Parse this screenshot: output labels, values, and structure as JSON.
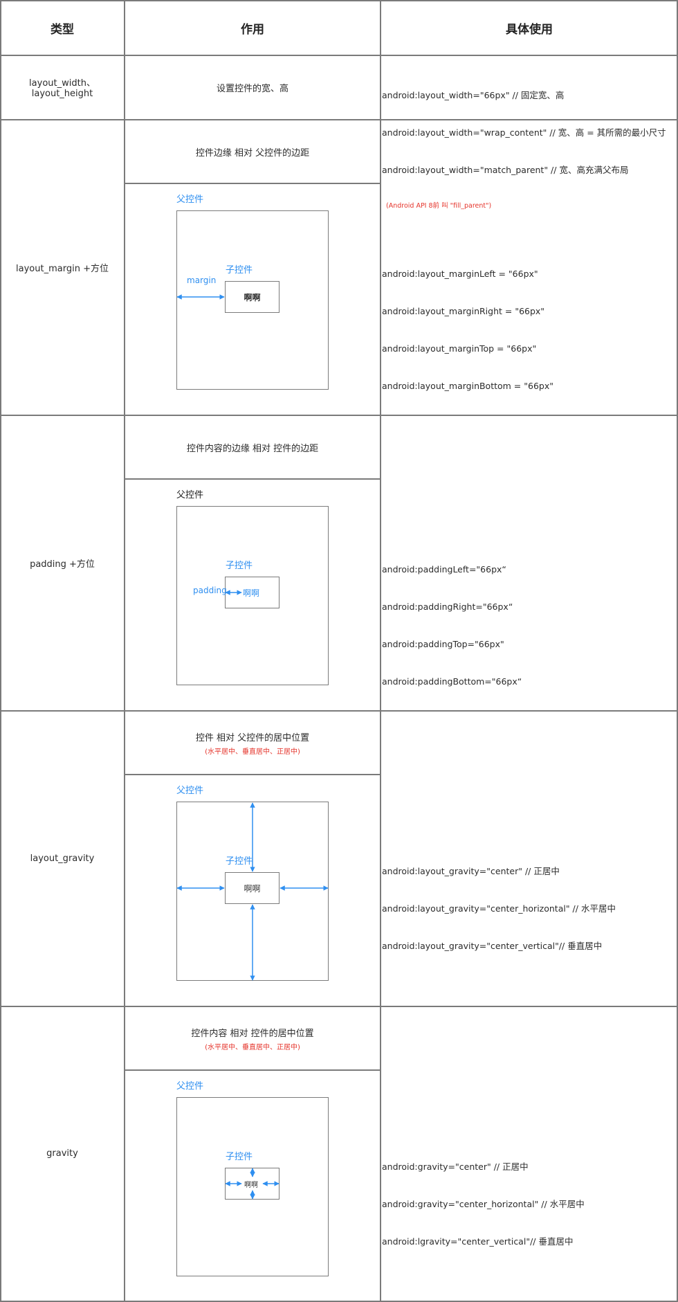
{
  "header": {
    "col_type": "类型",
    "col_effect": "作用",
    "col_usage": "具体使用"
  },
  "rows": {
    "size": {
      "type": "layout_width、layout_height",
      "effect": "设置控件的宽、高",
      "usage": [
        "android:layout_width=\"66px\" // 固定宽、高",
        "android:layout_width=\"wrap_content\" // 宽、高 = 其所需的最小尺寸",
        "android:layout_width=\"match_parent\" // 宽、高充满父布局"
      ],
      "note": "(Android API 8前 叫 \"fill_parent\")"
    },
    "margin": {
      "type": "layout_margin +方位",
      "effect": "控件边缘 相对 父控件的边距",
      "diagram": {
        "parent_label": "父控件",
        "child_label": "子控件",
        "child_text": "啊啊",
        "arrow_label": "margin"
      },
      "usage": [
        "android:layout_marginLeft = \"66px\"",
        "android:layout_marginRight = \"66px\"",
        "android:layout_marginTop = \"66px\"",
        "android:layout_marginBottom = \"66px\""
      ]
    },
    "padding": {
      "type": "padding +方位",
      "effect": "控件内容的边缘 相对 控件的边距",
      "diagram": {
        "parent_label": "父控件",
        "child_label": "子控件",
        "child_text": "啊啊",
        "arrow_label": "padding"
      },
      "usage": [
        "android:paddingLeft=\"66px“",
        "android:paddingRight=\"66px“",
        "android:paddingTop=\"66px\"",
        "android:paddingBottom=\"66px“"
      ]
    },
    "layout_gravity": {
      "type": "layout_gravity",
      "effect": "控件 相对 父控件的居中位置",
      "note": "(水平居中、垂直居中、正居中)",
      "diagram": {
        "parent_label": "父控件",
        "child_label": "子控件",
        "child_text": "啊啊"
      },
      "usage": [
        "android:layout_gravity=\"center\" // 正居中",
        "android:layout_gravity=\"center_horizontal\" // 水平居中",
        "android:layout_gravity=\"center_vertical\"// 垂直居中"
      ]
    },
    "gravity": {
      "type": "gravity",
      "effect": "控件内容 相对 控件的居中位置",
      "note": "(水平居中、垂直居中、正居中)",
      "diagram": {
        "parent_label": "父控件",
        "child_label": "子控件",
        "child_text": "啊啊"
      },
      "usage": [
        "android:gravity=\"center\" // 正居中",
        "android:gravity=\"center_horizontal\" // 水平居中",
        "android:lgravity=\"center_vertical\"// 垂直居中"
      ]
    }
  },
  "colors": {
    "border": "#7a7a7a",
    "accent_blue": "#2f8ff0",
    "note_red": "#e5332a"
  }
}
